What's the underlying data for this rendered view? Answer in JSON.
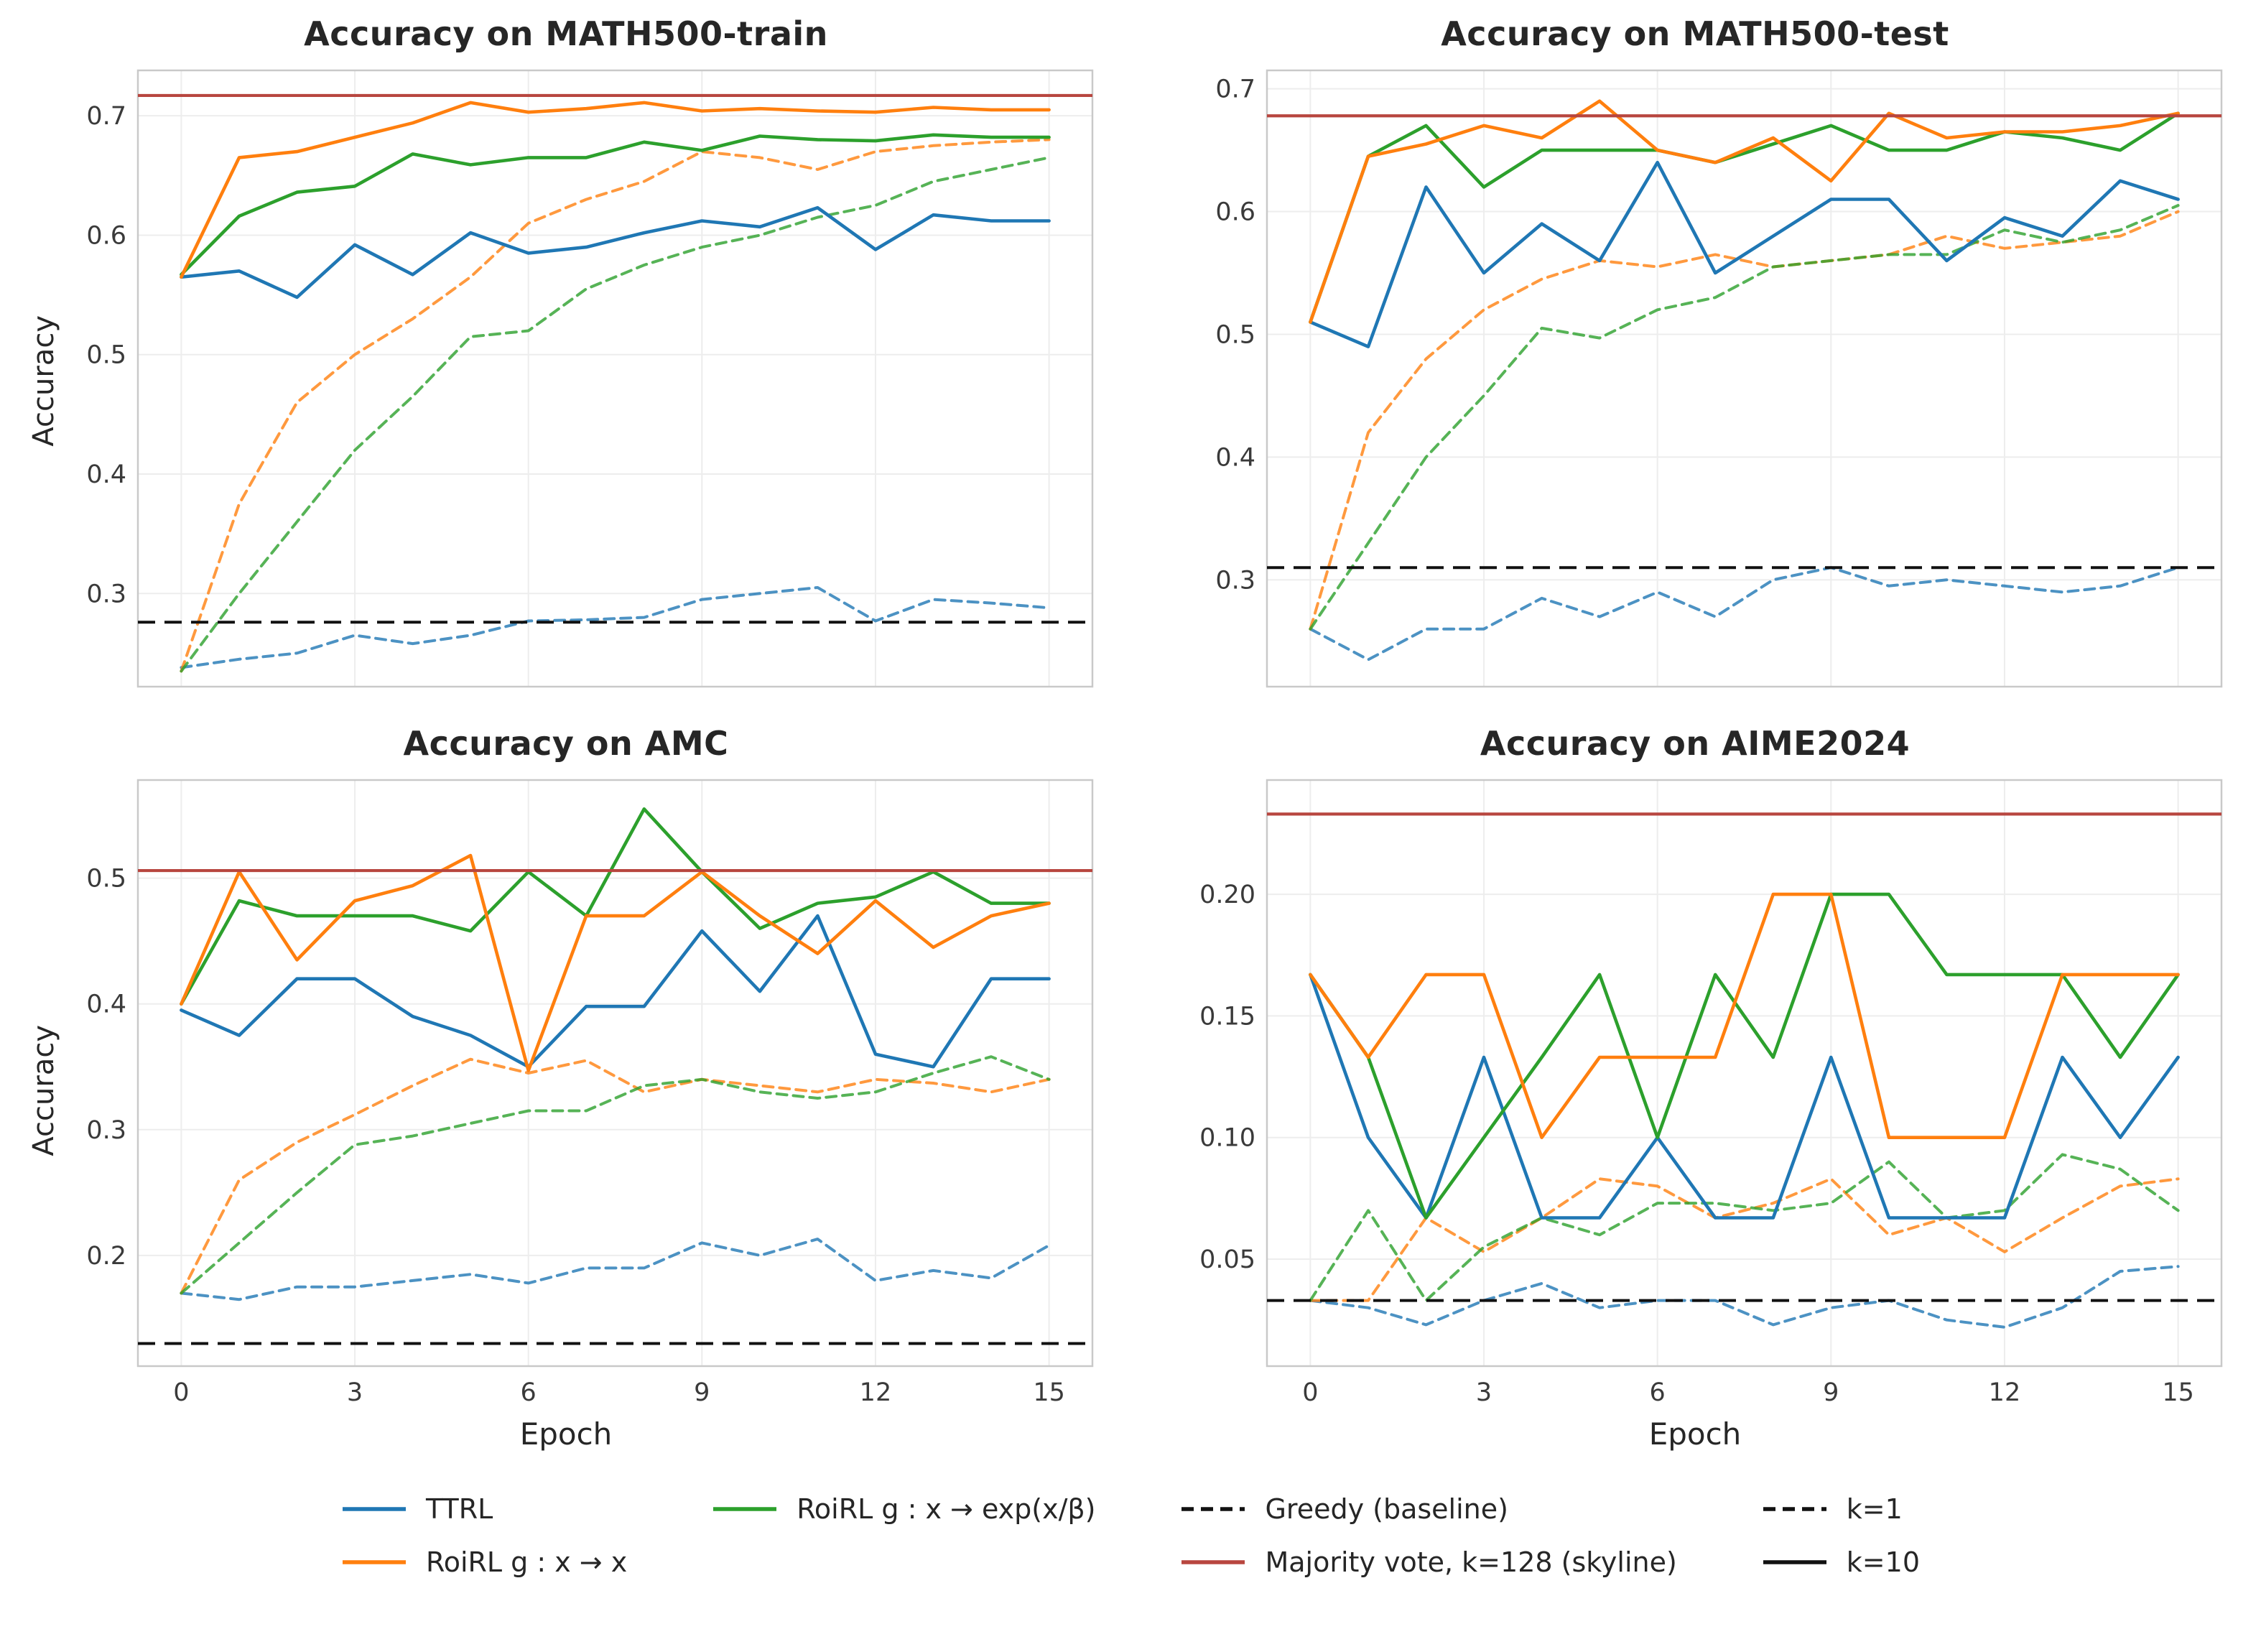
{
  "colors": {
    "ttrl": "#1f77b4",
    "roirl_x": "#ff7f0e",
    "roirl_exp": "#2ca02c",
    "skyline": "#b8463f",
    "black": "#111111",
    "grid": "#ededed",
    "frame": "#c9c9c9"
  },
  "legend": {
    "columns": [
      [
        {
          "label": "TTRL",
          "color": "ttrl",
          "style": "solid"
        },
        {
          "label": "RoiRL g : x → x",
          "color": "roirl_x",
          "style": "solid"
        }
      ],
      [
        {
          "label": "RoiRL g : x → exp(x/β)",
          "color": "roirl_exp",
          "style": "solid"
        }
      ],
      [
        {
          "label": "Greedy (baseline)",
          "color": "black",
          "style": "dashed"
        },
        {
          "label": "Majority vote, k=128 (skyline)",
          "color": "skyline",
          "style": "solid"
        }
      ],
      [
        {
          "label": "k=1",
          "color": "black",
          "style": "dashed"
        },
        {
          "label": "k=10",
          "color": "black",
          "style": "solid"
        }
      ]
    ]
  },
  "chart_data": [
    {
      "type": "line",
      "title": "Accuracy on MATH500-train",
      "xlabel": "",
      "ylabel": "Accuracy",
      "x": [
        0,
        1,
        2,
        3,
        4,
        5,
        6,
        7,
        8,
        9,
        10,
        11,
        12,
        13,
        14,
        15
      ],
      "xlim": [
        -0.75,
        15.75
      ],
      "ylim": [
        0.222,
        0.738
      ],
      "xtick_values": [
        0,
        3,
        6,
        9,
        12,
        15
      ],
      "xtick_labels": [],
      "ytick_values": [
        0.3,
        0.4,
        0.5,
        0.6,
        0.7
      ],
      "ytick_labels": [
        "0.3",
        "0.4",
        "0.5",
        "0.6",
        "0.7"
      ],
      "baselines": {
        "greedy": 0.276,
        "skyline": 0.717
      },
      "series": [
        {
          "id": "ttrl-k1",
          "name": "TTRL (k=1)",
          "color": "ttrl",
          "dash": true,
          "values": [
            0.238,
            0.245,
            0.25,
            0.265,
            0.258,
            0.265,
            0.277,
            0.278,
            0.28,
            0.295,
            0.3,
            0.305,
            0.277,
            0.295,
            0.292,
            0.288
          ]
        },
        {
          "id": "roirl-x-k1",
          "name": "RoiRL g:x→x (k=1)",
          "color": "roirl_x",
          "dash": true,
          "values": [
            0.235,
            0.375,
            0.46,
            0.5,
            0.53,
            0.565,
            0.61,
            0.63,
            0.645,
            0.67,
            0.665,
            0.655,
            0.67,
            0.675,
            0.678,
            0.68
          ]
        },
        {
          "id": "roirl-exp-k1",
          "name": "RoiRL g:x→exp(x/β) (k=1)",
          "color": "roirl_exp",
          "dash": true,
          "values": [
            0.235,
            0.3,
            0.36,
            0.42,
            0.465,
            0.515,
            0.52,
            0.555,
            0.575,
            0.59,
            0.6,
            0.615,
            0.625,
            0.645,
            0.655,
            0.665
          ]
        },
        {
          "id": "ttrl-k10",
          "name": "TTRL (k=10)",
          "color": "ttrl",
          "dash": false,
          "values": [
            0.565,
            0.57,
            0.548,
            0.592,
            0.567,
            0.602,
            0.585,
            0.59,
            0.602,
            0.612,
            0.607,
            0.623,
            0.588,
            0.617,
            0.612,
            0.612
          ]
        },
        {
          "id": "roirl-exp-k10",
          "name": "RoiRL g:x→exp(x/β) (k=10)",
          "color": "roirl_exp",
          "dash": false,
          "values": [
            0.567,
            0.616,
            0.636,
            0.641,
            0.668,
            0.659,
            0.665,
            0.665,
            0.678,
            0.671,
            0.683,
            0.68,
            0.679,
            0.684,
            0.682,
            0.682
          ]
        },
        {
          "id": "roirl-x-k10",
          "name": "RoiRL g:x→x (k=10)",
          "color": "roirl_x",
          "dash": false,
          "values": [
            0.565,
            0.665,
            0.67,
            0.682,
            0.694,
            0.711,
            0.703,
            0.706,
            0.711,
            0.704,
            0.706,
            0.704,
            0.703,
            0.707,
            0.705,
            0.705
          ]
        }
      ]
    },
    {
      "type": "line",
      "title": "Accuracy on MATH500-test",
      "xlabel": "",
      "ylabel": "",
      "x": [
        0,
        1,
        2,
        3,
        4,
        5,
        6,
        7,
        8,
        9,
        10,
        11,
        12,
        13,
        14,
        15
      ],
      "xlim": [
        -0.75,
        15.75
      ],
      "ylim": [
        0.213,
        0.715
      ],
      "xtick_values": [
        0,
        3,
        6,
        9,
        12,
        15
      ],
      "xtick_labels": [],
      "ytick_values": [
        0.3,
        0.4,
        0.5,
        0.6,
        0.7
      ],
      "ytick_labels": [
        "0.3",
        "0.4",
        "0.5",
        "0.6",
        "0.7"
      ],
      "baselines": {
        "greedy": 0.31,
        "skyline": 0.678
      },
      "series": [
        {
          "id": "ttrl-k1",
          "name": "TTRL (k=1)",
          "color": "ttrl",
          "dash": true,
          "values": [
            0.26,
            0.235,
            0.26,
            0.26,
            0.285,
            0.27,
            0.29,
            0.27,
            0.3,
            0.31,
            0.295,
            0.3,
            0.295,
            0.29,
            0.295,
            0.31
          ]
        },
        {
          "id": "roirl-x-k1",
          "name": "RoiRL g:x→x (k=1)",
          "color": "roirl_x",
          "dash": true,
          "values": [
            0.26,
            0.42,
            0.48,
            0.52,
            0.545,
            0.56,
            0.555,
            0.565,
            0.555,
            0.56,
            0.565,
            0.58,
            0.57,
            0.575,
            0.58,
            0.6
          ]
        },
        {
          "id": "roirl-exp-k1",
          "name": "RoiRL g:x→exp(x/β) (k=1)",
          "color": "roirl_exp",
          "dash": true,
          "values": [
            0.26,
            0.33,
            0.4,
            0.45,
            0.505,
            0.497,
            0.52,
            0.53,
            0.555,
            0.56,
            0.565,
            0.565,
            0.585,
            0.575,
            0.585,
            0.605
          ]
        },
        {
          "id": "ttrl-k10",
          "name": "TTRL (k=10)",
          "color": "ttrl",
          "dash": false,
          "values": [
            0.51,
            0.49,
            0.62,
            0.55,
            0.59,
            0.56,
            0.64,
            0.55,
            0.58,
            0.61,
            0.61,
            0.56,
            0.595,
            0.58,
            0.625,
            0.61
          ]
        },
        {
          "id": "roirl-exp-k10",
          "name": "RoiRL g:x→exp(x/β) (k=10)",
          "color": "roirl_exp",
          "dash": false,
          "values": [
            0.51,
            0.645,
            0.67,
            0.62,
            0.65,
            0.65,
            0.65,
            0.64,
            0.655,
            0.67,
            0.65,
            0.65,
            0.665,
            0.66,
            0.65,
            0.68
          ]
        },
        {
          "id": "roirl-x-k10",
          "name": "RoiRL g:x→x (k=10)",
          "color": "roirl_x",
          "dash": false,
          "values": [
            0.51,
            0.645,
            0.655,
            0.67,
            0.66,
            0.69,
            0.65,
            0.64,
            0.66,
            0.625,
            0.68,
            0.66,
            0.665,
            0.665,
            0.67,
            0.68
          ]
        }
      ]
    },
    {
      "type": "line",
      "title": "Accuracy on AMC",
      "xlabel": "Epoch",
      "ylabel": "Accuracy",
      "x": [
        0,
        1,
        2,
        3,
        4,
        5,
        6,
        7,
        8,
        9,
        10,
        11,
        12,
        13,
        14,
        15
      ],
      "xlim": [
        -0.75,
        15.75
      ],
      "ylim": [
        0.112,
        0.578
      ],
      "xtick_values": [
        0,
        3,
        6,
        9,
        12,
        15
      ],
      "xtick_labels": [
        "0",
        "3",
        "6",
        "9",
        "12",
        "15"
      ],
      "ytick_values": [
        0.2,
        0.3,
        0.4,
        0.5
      ],
      "ytick_labels": [
        "0.2",
        "0.3",
        "0.4",
        "0.5"
      ],
      "baselines": {
        "greedy": 0.13,
        "skyline": 0.506
      },
      "series": [
        {
          "id": "ttrl-k1",
          "name": "TTRL (k=1)",
          "color": "ttrl",
          "dash": true,
          "values": [
            0.17,
            0.165,
            0.175,
            0.175,
            0.18,
            0.185,
            0.178,
            0.19,
            0.19,
            0.21,
            0.2,
            0.213,
            0.18,
            0.188,
            0.182,
            0.208
          ]
        },
        {
          "id": "roirl-x-k1",
          "name": "RoiRL g:x→x (k=1)",
          "color": "roirl_x",
          "dash": true,
          "values": [
            0.17,
            0.26,
            0.29,
            0.312,
            0.335,
            0.356,
            0.345,
            0.355,
            0.33,
            0.34,
            0.335,
            0.33,
            0.34,
            0.337,
            0.33,
            0.34
          ]
        },
        {
          "id": "roirl-exp-k1",
          "name": "RoiRL g:x→exp(x/β) (k=1)",
          "color": "roirl_exp",
          "dash": true,
          "values": [
            0.17,
            0.21,
            0.25,
            0.288,
            0.295,
            0.305,
            0.315,
            0.315,
            0.335,
            0.34,
            0.33,
            0.325,
            0.33,
            0.345,
            0.358,
            0.34
          ]
        },
        {
          "id": "ttrl-k10",
          "name": "TTRL (k=10)",
          "color": "ttrl",
          "dash": false,
          "values": [
            0.395,
            0.375,
            0.42,
            0.42,
            0.39,
            0.375,
            0.35,
            0.398,
            0.398,
            0.458,
            0.41,
            0.47,
            0.36,
            0.35,
            0.42,
            0.42
          ]
        },
        {
          "id": "roirl-exp-k10",
          "name": "RoiRL g:x→exp(x/β) (k=10)",
          "color": "roirl_exp",
          "dash": false,
          "values": [
            0.4,
            0.482,
            0.47,
            0.47,
            0.47,
            0.458,
            0.505,
            0.47,
            0.555,
            0.505,
            0.46,
            0.48,
            0.485,
            0.505,
            0.48,
            0.48
          ]
        },
        {
          "id": "roirl-x-k10",
          "name": "RoiRL g:x→x (k=10)",
          "color": "roirl_x",
          "dash": false,
          "values": [
            0.4,
            0.505,
            0.435,
            0.482,
            0.494,
            0.518,
            0.347,
            0.47,
            0.47,
            0.505,
            0.47,
            0.44,
            0.482,
            0.445,
            0.47,
            0.48
          ]
        }
      ]
    },
    {
      "type": "line",
      "title": "Accuracy on AIME2024",
      "xlabel": "Epoch",
      "ylabel": "",
      "x": [
        0,
        1,
        2,
        3,
        4,
        5,
        6,
        7,
        8,
        9,
        10,
        11,
        12,
        13,
        14,
        15
      ],
      "xlim": [
        -0.75,
        15.75
      ],
      "ylim": [
        0.006,
        0.247
      ],
      "xtick_values": [
        0,
        3,
        6,
        9,
        12,
        15
      ],
      "xtick_labels": [
        "0",
        "3",
        "6",
        "9",
        "12",
        "15"
      ],
      "ytick_values": [
        0.05,
        0.1,
        0.15,
        0.2
      ],
      "ytick_labels": [
        "0.05",
        "0.10",
        "0.15",
        "0.20"
      ],
      "baselines": {
        "greedy": 0.033,
        "skyline": 0.233
      },
      "series": [
        {
          "id": "ttrl-k1",
          "name": "TTRL (k=1)",
          "color": "ttrl",
          "dash": true,
          "values": [
            0.033,
            0.03,
            0.023,
            0.033,
            0.04,
            0.03,
            0.033,
            0.033,
            0.023,
            0.03,
            0.033,
            0.025,
            0.022,
            0.03,
            0.045,
            0.047
          ]
        },
        {
          "id": "roirl-x-k1",
          "name": "RoiRL g:x→x (k=1)",
          "color": "roirl_x",
          "dash": true,
          "values": [
            0.033,
            0.033,
            0.067,
            0.053,
            0.067,
            0.083,
            0.08,
            0.067,
            0.073,
            0.083,
            0.06,
            0.067,
            0.053,
            0.067,
            0.08,
            0.083
          ]
        },
        {
          "id": "roirl-exp-k1",
          "name": "RoiRL g:x→exp(x/β) (k=1)",
          "color": "roirl_exp",
          "dash": true,
          "values": [
            0.033,
            0.07,
            0.033,
            0.055,
            0.067,
            0.06,
            0.073,
            0.073,
            0.07,
            0.073,
            0.09,
            0.067,
            0.07,
            0.093,
            0.087,
            0.07
          ]
        },
        {
          "id": "ttrl-k10",
          "name": "TTRL (k=10)",
          "color": "ttrl",
          "dash": false,
          "values": [
            0.167,
            0.1,
            0.067,
            0.133,
            0.067,
            0.067,
            0.1,
            0.067,
            0.067,
            0.133,
            0.067,
            0.067,
            0.067,
            0.133,
            0.1,
            0.133
          ]
        },
        {
          "id": "roirl-exp-k10",
          "name": "RoiRL g:x→exp(x/β) (k=10)",
          "color": "roirl_exp",
          "dash": false,
          "values": [
            0.167,
            0.133,
            0.067,
            0.1,
            0.133,
            0.167,
            0.1,
            0.167,
            0.133,
            0.2,
            0.2,
            0.167,
            0.167,
            0.167,
            0.133,
            0.167
          ]
        },
        {
          "id": "roirl-x-k10",
          "name": "RoiRL g:x→x (k=10)",
          "color": "roirl_x",
          "dash": false,
          "values": [
            0.167,
            0.133,
            0.167,
            0.167,
            0.1,
            0.133,
            0.133,
            0.133,
            0.2,
            0.2,
            0.1,
            0.1,
            0.1,
            0.167,
            0.167,
            0.167
          ]
        }
      ]
    }
  ]
}
